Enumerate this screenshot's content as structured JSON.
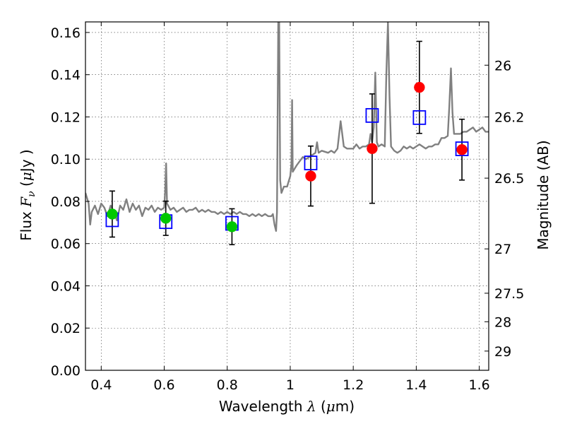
{
  "chart_data": {
    "type": "scatter",
    "x_label": "Wavelength  λ (μm)",
    "x_label_parts": {
      "text": "Wavelength  ",
      "math": "λ",
      "unit_open": " (",
      "unit_mu": "μ",
      "unit_rest": "m)"
    },
    "y_label_parts": {
      "text": "Flux  ",
      "math": "F",
      "sub": "ν",
      "unit_open": "  (",
      "unit_mu": "μ",
      "unit_rest": "Jy )"
    },
    "y2_label": "Magnitude (AB)",
    "xlim": [
      0.35,
      1.63
    ],
    "ylim": [
      0,
      0.165
    ],
    "x_ticks": [
      0.4,
      0.6,
      0.8,
      1.0,
      1.2,
      1.4,
      1.6
    ],
    "x_tick_labels": [
      "0.4",
      "0.6",
      "0.8",
      "1",
      "1.2",
      "1.4",
      "1.6"
    ],
    "y_ticks": [
      0,
      0.02,
      0.04,
      0.06,
      0.08,
      0.1,
      0.12,
      0.14,
      0.16
    ],
    "y_tick_labels": [
      "0.00",
      "0.02",
      "0.04",
      "0.06",
      "0.08",
      "0.10",
      "0.12",
      "0.14",
      "0.16"
    ],
    "y2_ticks": [
      {
        "label": "26",
        "flux": 0.1445
      },
      {
        "label": "26.2",
        "flux": 0.12
      },
      {
        "label": "26.5",
        "flux": 0.091
      },
      {
        "label": "27",
        "flux": 0.0575
      },
      {
        "label": "27.5",
        "flux": 0.0365
      },
      {
        "label": "28",
        "flux": 0.023
      },
      {
        "label": "29",
        "flux": 0.0091
      }
    ],
    "grid": true,
    "colors": {
      "template": "#808080",
      "model_box": "#0000ff",
      "optical": "#00c800",
      "nir": "#ff0000",
      "errorbar": "#000000"
    },
    "series": [
      {
        "kind": "line",
        "points": [
          [
            0.35,
            0.084
          ],
          [
            0.36,
            0.079
          ],
          [
            0.365,
            0.069
          ],
          [
            0.37,
            0.075
          ],
          [
            0.38,
            0.078
          ],
          [
            0.39,
            0.074
          ],
          [
            0.4,
            0.079
          ],
          [
            0.41,
            0.077
          ],
          [
            0.42,
            0.073
          ],
          [
            0.43,
            0.078
          ],
          [
            0.44,
            0.075
          ],
          [
            0.45,
            0.071
          ],
          [
            0.46,
            0.078
          ],
          [
            0.47,
            0.076
          ],
          [
            0.48,
            0.081
          ],
          [
            0.49,
            0.075
          ],
          [
            0.5,
            0.079
          ],
          [
            0.51,
            0.076
          ],
          [
            0.52,
            0.078
          ],
          [
            0.53,
            0.073
          ],
          [
            0.54,
            0.077
          ],
          [
            0.55,
            0.076
          ],
          [
            0.56,
            0.078
          ],
          [
            0.57,
            0.075
          ],
          [
            0.58,
            0.077
          ],
          [
            0.59,
            0.076
          ],
          [
            0.6,
            0.077
          ],
          [
            0.603,
            0.085
          ],
          [
            0.606,
            0.098
          ],
          [
            0.609,
            0.079
          ],
          [
            0.62,
            0.076
          ],
          [
            0.63,
            0.077
          ],
          [
            0.64,
            0.075
          ],
          [
            0.65,
            0.076
          ],
          [
            0.66,
            0.077
          ],
          [
            0.67,
            0.075
          ],
          [
            0.68,
            0.076
          ],
          [
            0.69,
            0.076
          ],
          [
            0.7,
            0.077
          ],
          [
            0.71,
            0.075
          ],
          [
            0.72,
            0.076
          ],
          [
            0.73,
            0.075
          ],
          [
            0.74,
            0.076
          ],
          [
            0.75,
            0.075
          ],
          [
            0.76,
            0.075
          ],
          [
            0.77,
            0.074
          ],
          [
            0.78,
            0.075
          ],
          [
            0.79,
            0.074
          ],
          [
            0.8,
            0.075
          ],
          [
            0.81,
            0.074
          ],
          [
            0.82,
            0.075
          ],
          [
            0.83,
            0.074
          ],
          [
            0.84,
            0.075
          ],
          [
            0.85,
            0.074
          ],
          [
            0.86,
            0.074
          ],
          [
            0.87,
            0.073
          ],
          [
            0.88,
            0.074
          ],
          [
            0.89,
            0.073
          ],
          [
            0.9,
            0.074
          ],
          [
            0.91,
            0.073
          ],
          [
            0.92,
            0.074
          ],
          [
            0.93,
            0.073
          ],
          [
            0.94,
            0.073
          ],
          [
            0.945,
            0.074
          ],
          [
            0.95,
            0.069
          ],
          [
            0.955,
            0.066
          ],
          [
            0.958,
            0.075
          ],
          [
            0.962,
            0.165
          ],
          [
            0.965,
            0.165
          ],
          [
            0.968,
            0.09
          ],
          [
            0.972,
            0.084
          ],
          [
            0.98,
            0.087
          ],
          [
            0.99,
            0.087
          ],
          [
            1.0,
            0.092
          ],
          [
            1.004,
            0.098
          ],
          [
            1.006,
            0.128
          ],
          [
            1.008,
            0.094
          ],
          [
            1.02,
            0.097
          ],
          [
            1.03,
            0.099
          ],
          [
            1.04,
            0.101
          ],
          [
            1.05,
            0.1
          ],
          [
            1.06,
            0.101
          ],
          [
            1.07,
            0.102
          ],
          [
            1.08,
            0.103
          ],
          [
            1.085,
            0.108
          ],
          [
            1.09,
            0.103
          ],
          [
            1.1,
            0.104
          ],
          [
            1.12,
            0.103
          ],
          [
            1.13,
            0.104
          ],
          [
            1.14,
            0.103
          ],
          [
            1.15,
            0.105
          ],
          [
            1.16,
            0.118
          ],
          [
            1.17,
            0.106
          ],
          [
            1.18,
            0.105
          ],
          [
            1.2,
            0.105
          ],
          [
            1.21,
            0.107
          ],
          [
            1.22,
            0.105
          ],
          [
            1.23,
            0.106
          ],
          [
            1.24,
            0.106
          ],
          [
            1.25,
            0.107
          ],
          [
            1.255,
            0.112
          ],
          [
            1.26,
            0.108
          ],
          [
            1.265,
            0.115
          ],
          [
            1.27,
            0.141
          ],
          [
            1.275,
            0.108
          ],
          [
            1.28,
            0.106
          ],
          [
            1.29,
            0.107
          ],
          [
            1.3,
            0.106
          ],
          [
            1.305,
            0.14
          ],
          [
            1.31,
            0.165
          ],
          [
            1.315,
            0.13
          ],
          [
            1.32,
            0.106
          ],
          [
            1.33,
            0.104
          ],
          [
            1.34,
            0.103
          ],
          [
            1.35,
            0.104
          ],
          [
            1.36,
            0.106
          ],
          [
            1.37,
            0.105
          ],
          [
            1.38,
            0.106
          ],
          [
            1.39,
            0.105
          ],
          [
            1.4,
            0.106
          ],
          [
            1.41,
            0.107
          ],
          [
            1.42,
            0.106
          ],
          [
            1.43,
            0.105
          ],
          [
            1.44,
            0.106
          ],
          [
            1.45,
            0.106
          ],
          [
            1.46,
            0.107
          ],
          [
            1.47,
            0.107
          ],
          [
            1.48,
            0.11
          ],
          [
            1.49,
            0.11
          ],
          [
            1.5,
            0.111
          ],
          [
            1.505,
            0.125
          ],
          [
            1.51,
            0.143
          ],
          [
            1.515,
            0.122
          ],
          [
            1.52,
            0.112
          ],
          [
            1.53,
            0.112
          ],
          [
            1.54,
            0.112
          ],
          [
            1.55,
            0.113
          ],
          [
            1.56,
            0.113
          ],
          [
            1.57,
            0.114
          ],
          [
            1.58,
            0.115
          ],
          [
            1.59,
            0.113
          ],
          [
            1.6,
            0.114
          ],
          [
            1.61,
            0.115
          ],
          [
            1.62,
            0.113
          ],
          [
            1.63,
            0.113
          ]
        ]
      },
      {
        "kind": "open-square",
        "points": [
          [
            0.435,
            0.0713
          ],
          [
            0.605,
            0.0704
          ],
          [
            0.815,
            0.0696
          ],
          [
            1.065,
            0.0982
          ],
          [
            1.26,
            0.1207
          ],
          [
            1.41,
            0.1197
          ],
          [
            1.545,
            0.1049
          ]
        ]
      },
      {
        "kind": "filled-circle",
        "points": [
          {
            "x": 0.435,
            "y": 0.074,
            "err": 0.0109
          },
          {
            "x": 0.605,
            "y": 0.072,
            "err": 0.0081
          },
          {
            "x": 0.815,
            "y": 0.068,
            "err": 0.0085
          },
          {
            "x": 1.065,
            "y": 0.092,
            "err": 0.0142
          },
          {
            "x": 1.26,
            "y": 0.105,
            "err": 0.0259
          },
          {
            "x": 1.41,
            "y": 0.134,
            "err": 0.0218
          },
          {
            "x": 1.545,
            "y": 0.1045,
            "err": 0.0144
          }
        ]
      }
    ]
  }
}
